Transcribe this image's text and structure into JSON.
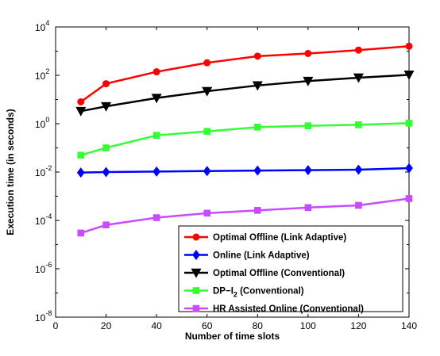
{
  "chart_data": {
    "type": "line",
    "title": "",
    "xlabel": "Number of time slots",
    "ylabel": "Execution time (in seconds)",
    "xlim": [
      0,
      140
    ],
    "ylim": [
      1e-08,
      10000.0
    ],
    "yscale": "log",
    "grid": false,
    "legend_position": "bottom-right",
    "xticks": [
      "0",
      "20",
      "40",
      "60",
      "80",
      "100",
      "120",
      "140"
    ],
    "yticks": [
      {
        "base": "10",
        "exp": "-8",
        "value": 1e-08
      },
      {
        "base": "10",
        "exp": "-6",
        "value": 1e-06
      },
      {
        "base": "10",
        "exp": "-4",
        "value": 0.0001
      },
      {
        "base": "10",
        "exp": "-2",
        "value": 0.01
      },
      {
        "base": "10",
        "exp": "0",
        "value": 1
      },
      {
        "base": "10",
        "exp": "2",
        "value": 100
      },
      {
        "base": "10",
        "exp": "4",
        "value": 10000
      }
    ],
    "x": [
      10,
      20,
      40,
      60,
      80,
      100,
      120,
      140
    ],
    "series": [
      {
        "name": "Optimal Offline (Link Adaptive)",
        "color": "#ff0000",
        "marker": "circle",
        "values": [
          8,
          45,
          140,
          330,
          620,
          800,
          1100,
          1600
        ]
      },
      {
        "name": "Online (Link Adaptive)",
        "color": "#0000ff",
        "marker": "diamond",
        "values": [
          0.0095,
          0.01,
          0.0105,
          0.011,
          0.0115,
          0.012,
          0.0125,
          0.0145
        ]
      },
      {
        "name": "Optimal Offline (Conventional)",
        "color": "#000000",
        "marker": "triangle-down",
        "values": [
          3.3,
          5.2,
          11.5,
          22,
          38,
          58,
          80,
          105
        ]
      },
      {
        "name_main": "DP−I",
        "name_sub": "2",
        "name_rest": " (Conventional)",
        "color": "#33ff33",
        "marker": "square",
        "values": [
          0.05,
          0.1,
          0.33,
          0.48,
          0.72,
          0.82,
          0.9,
          1.05
        ]
      },
      {
        "name": "HR Assisted Online (Conventional)",
        "color": "#c84bff",
        "marker": "square",
        "values": [
          3e-05,
          6.5e-05,
          0.00013,
          0.0002,
          0.00026,
          0.00034,
          0.00042,
          0.0008
        ]
      }
    ]
  }
}
